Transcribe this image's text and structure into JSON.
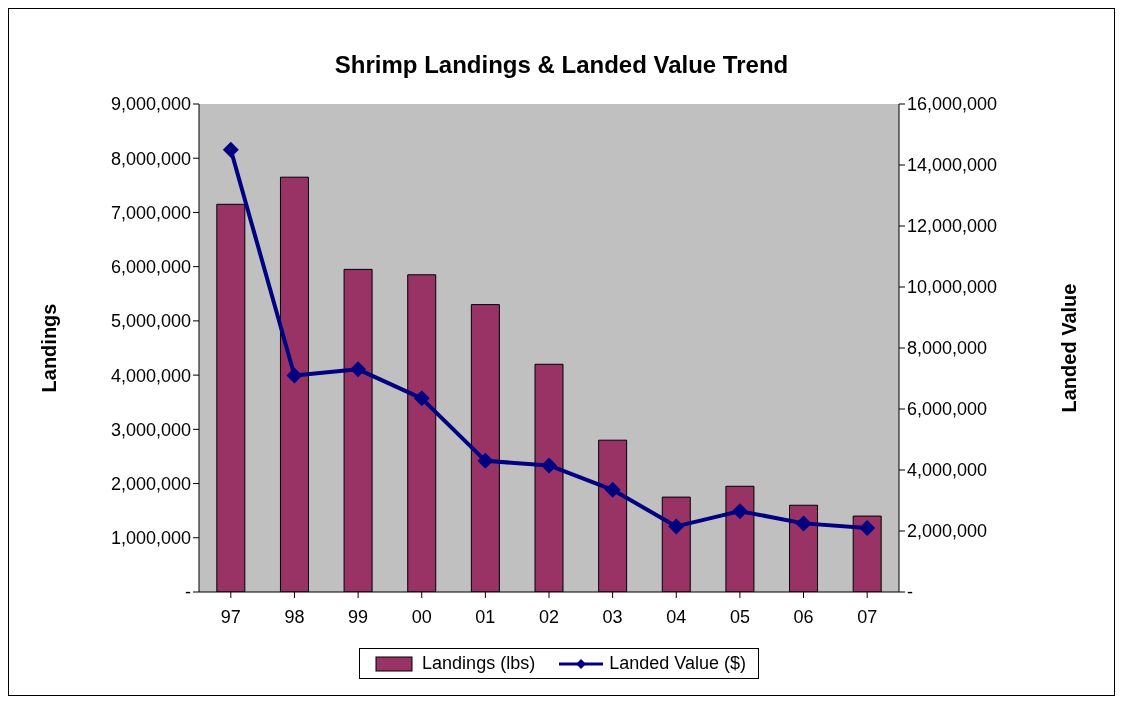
{
  "chart_data": {
    "type": "bar",
    "title": "Shrimp Landings & Landed Value Trend",
    "ylabel": "Landings",
    "y2label": "Landed Value",
    "categories": [
      "97",
      "98",
      "99",
      "00",
      "01",
      "02",
      "03",
      "04",
      "05",
      "06",
      "07"
    ],
    "series": [
      {
        "name": "Landings (lbs)",
        "color": "#993366",
        "values": [
          7150000,
          7650000,
          5950000,
          5850000,
          5300000,
          4200000,
          2800000,
          1750000,
          1950000,
          1600000,
          1400000
        ]
      },
      {
        "name": "Landed Value ($)",
        "type": "line",
        "axis": "y2",
        "color": "#000080",
        "marker": "diamond",
        "values": [
          14500000,
          7100000,
          7300000,
          6350000,
          4300000,
          4150000,
          3350000,
          2150000,
          2650000,
          2250000,
          2100000
        ]
      }
    ],
    "ylim": [
      0,
      9000000
    ],
    "yticks": [
      {
        "value": 0,
        "label": "-"
      },
      {
        "value": 1000000,
        "label": "1,000,000"
      },
      {
        "value": 2000000,
        "label": "2,000,000"
      },
      {
        "value": 3000000,
        "label": "3,000,000"
      },
      {
        "value": 4000000,
        "label": "4,000,000"
      },
      {
        "value": 5000000,
        "label": "5,000,000"
      },
      {
        "value": 6000000,
        "label": "6,000,000"
      },
      {
        "value": 7000000,
        "label": "7,000,000"
      },
      {
        "value": 8000000,
        "label": "8,000,000"
      },
      {
        "value": 9000000,
        "label": "9,000,000"
      }
    ],
    "y2lim": [
      0,
      16000000
    ],
    "y2ticks": [
      {
        "value": 0,
        "label": "-"
      },
      {
        "value": 2000000,
        "label": "2,000,000"
      },
      {
        "value": 4000000,
        "label": "4,000,000"
      },
      {
        "value": 6000000,
        "label": "6,000,000"
      },
      {
        "value": 8000000,
        "label": "8,000,000"
      },
      {
        "value": 10000000,
        "label": "10,000,000"
      },
      {
        "value": 12000000,
        "label": "12,000,000"
      },
      {
        "value": 14000000,
        "label": "14,000,000"
      },
      {
        "value": 16000000,
        "label": "16,000,000"
      }
    ],
    "legend": "bottom",
    "grid": false
  }
}
